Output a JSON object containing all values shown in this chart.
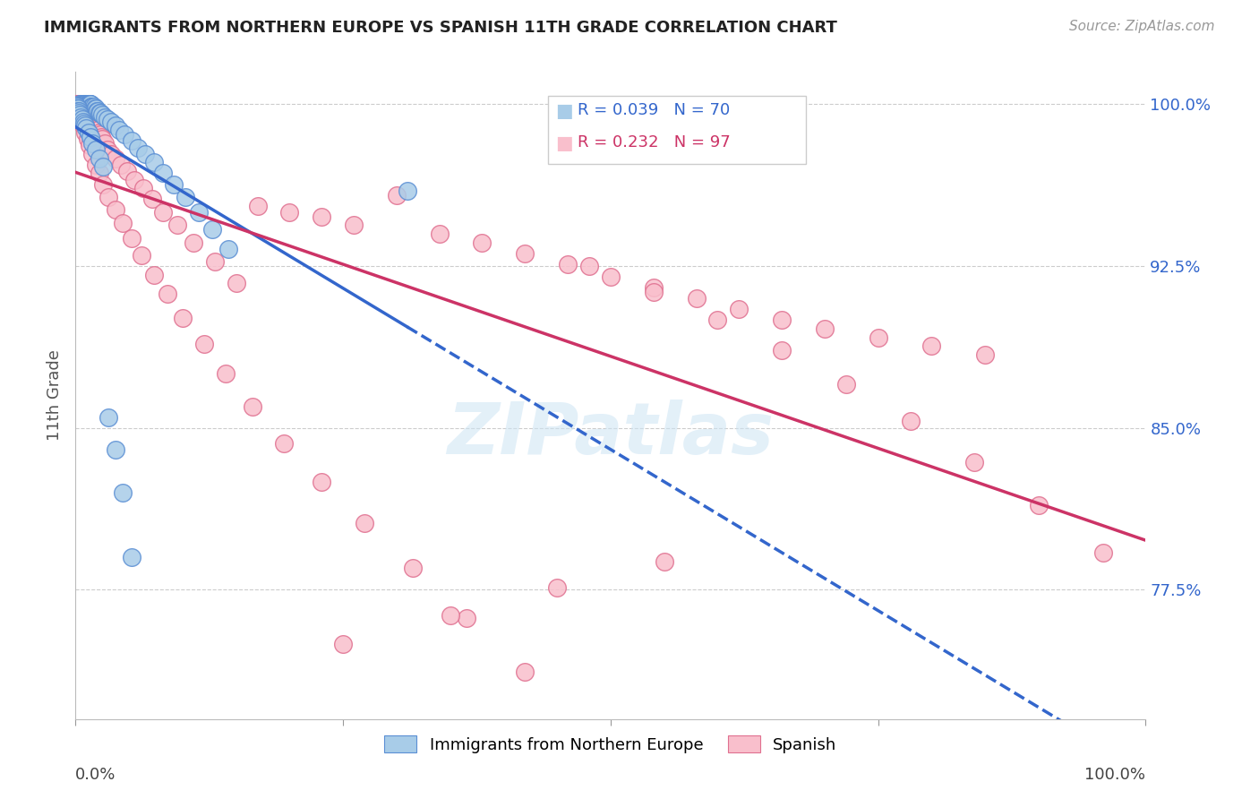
{
  "title": "IMMIGRANTS FROM NORTHERN EUROPE VS SPANISH 11TH GRADE CORRELATION CHART",
  "source": "Source: ZipAtlas.com",
  "ylabel": "11th Grade",
  "xmin": 0.0,
  "xmax": 1.0,
  "ymin": 0.715,
  "ymax": 1.015,
  "blue_R": 0.039,
  "blue_N": 70,
  "pink_R": 0.232,
  "pink_N": 97,
  "blue_color": "#a8cce8",
  "pink_color": "#f9bfcc",
  "blue_edge_color": "#5b8fd4",
  "pink_edge_color": "#e07090",
  "blue_line_color": "#3366cc",
  "pink_line_color": "#cc3366",
  "blue_scatter_x": [
    0.004,
    0.005,
    0.006,
    0.007,
    0.007,
    0.008,
    0.008,
    0.009,
    0.009,
    0.01,
    0.01,
    0.011,
    0.011,
    0.012,
    0.012,
    0.013,
    0.013,
    0.014,
    0.014,
    0.015,
    0.015,
    0.016,
    0.017,
    0.018,
    0.019,
    0.02,
    0.021,
    0.022,
    0.023,
    0.025,
    0.027,
    0.03,
    0.033,
    0.037,
    0.041,
    0.046,
    0.052,
    0.058,
    0.065,
    0.073,
    0.082,
    0.092,
    0.103,
    0.115,
    0.128,
    0.143,
    0.001,
    0.001,
    0.002,
    0.002,
    0.003,
    0.003,
    0.004,
    0.005,
    0.006,
    0.007,
    0.008,
    0.009,
    0.01,
    0.012,
    0.014,
    0.016,
    0.019,
    0.022,
    0.026,
    0.031,
    0.037,
    0.044,
    0.052,
    0.31
  ],
  "blue_scatter_y": [
    1.0,
    1.0,
    1.0,
    1.0,
    1.0,
    1.0,
    1.0,
    1.0,
    1.0,
    1.0,
    1.0,
    1.0,
    1.0,
    1.0,
    1.0,
    1.0,
    1.0,
    1.0,
    1.0,
    0.999,
    0.999,
    0.999,
    0.999,
    0.998,
    0.998,
    0.997,
    0.997,
    0.996,
    0.996,
    0.995,
    0.994,
    0.993,
    0.992,
    0.99,
    0.988,
    0.986,
    0.983,
    0.98,
    0.977,
    0.973,
    0.968,
    0.963,
    0.957,
    0.95,
    0.942,
    0.933,
    0.999,
    0.998,
    0.998,
    0.997,
    0.997,
    0.996,
    0.995,
    0.994,
    0.993,
    0.992,
    0.991,
    0.99,
    0.989,
    0.987,
    0.985,
    0.982,
    0.979,
    0.975,
    0.971,
    0.855,
    0.84,
    0.82,
    0.79,
    0.96
  ],
  "pink_scatter_x": [
    0.001,
    0.002,
    0.003,
    0.004,
    0.005,
    0.006,
    0.007,
    0.008,
    0.009,
    0.01,
    0.011,
    0.012,
    0.013,
    0.014,
    0.015,
    0.016,
    0.017,
    0.018,
    0.019,
    0.02,
    0.021,
    0.022,
    0.023,
    0.024,
    0.025,
    0.027,
    0.03,
    0.033,
    0.037,
    0.042,
    0.048,
    0.055,
    0.063,
    0.072,
    0.082,
    0.095,
    0.11,
    0.13,
    0.15,
    0.17,
    0.2,
    0.23,
    0.26,
    0.3,
    0.34,
    0.38,
    0.42,
    0.46,
    0.5,
    0.54,
    0.58,
    0.62,
    0.66,
    0.7,
    0.75,
    0.8,
    0.85,
    0.003,
    0.005,
    0.007,
    0.009,
    0.011,
    0.013,
    0.016,
    0.019,
    0.022,
    0.026,
    0.031,
    0.037,
    0.044,
    0.052,
    0.062,
    0.073,
    0.086,
    0.1,
    0.12,
    0.14,
    0.165,
    0.195,
    0.23,
    0.27,
    0.315,
    0.365,
    0.42,
    0.48,
    0.54,
    0.6,
    0.66,
    0.72,
    0.78,
    0.84,
    0.9,
    0.96,
    0.55,
    0.45,
    0.35,
    0.25
  ],
  "pink_scatter_y": [
    1.0,
    1.0,
    1.0,
    1.0,
    0.999,
    0.999,
    0.999,
    0.998,
    0.998,
    0.997,
    0.997,
    0.996,
    0.995,
    0.994,
    0.993,
    0.992,
    0.991,
    0.99,
    0.989,
    0.988,
    0.988,
    0.987,
    0.986,
    0.985,
    0.984,
    0.982,
    0.979,
    0.977,
    0.975,
    0.972,
    0.969,
    0.965,
    0.961,
    0.956,
    0.95,
    0.944,
    0.936,
    0.927,
    0.917,
    0.953,
    0.95,
    0.948,
    0.944,
    0.958,
    0.94,
    0.936,
    0.931,
    0.926,
    0.92,
    0.915,
    0.91,
    0.905,
    0.9,
    0.896,
    0.892,
    0.888,
    0.884,
    0.996,
    0.993,
    0.99,
    0.987,
    0.984,
    0.981,
    0.977,
    0.972,
    0.968,
    0.963,
    0.957,
    0.951,
    0.945,
    0.938,
    0.93,
    0.921,
    0.912,
    0.901,
    0.889,
    0.875,
    0.86,
    0.843,
    0.825,
    0.806,
    0.785,
    0.762,
    0.737,
    0.925,
    0.913,
    0.9,
    0.886,
    0.87,
    0.853,
    0.834,
    0.814,
    0.792,
    0.788,
    0.776,
    0.763,
    0.75
  ]
}
